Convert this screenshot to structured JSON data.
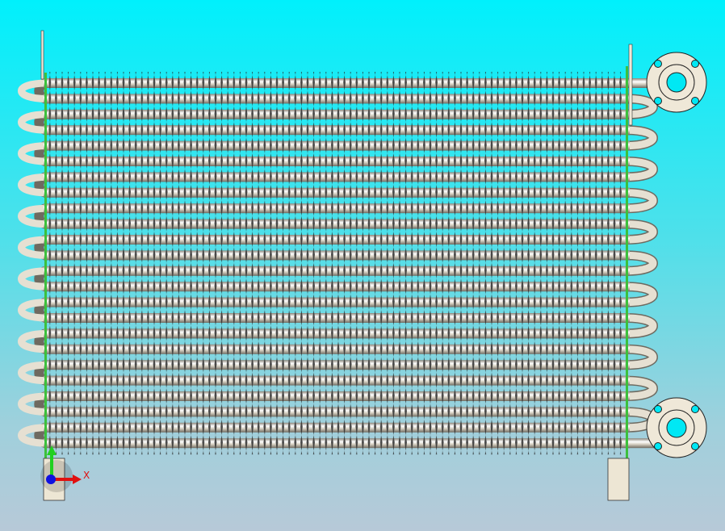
{
  "viewport": {
    "background_top": "#00f0fc",
    "background_bottom": "#b7c9d8",
    "model": {
      "tube_rows": 24,
      "tube_color": "#d8d2c4",
      "fin_color": "#2a2a2a",
      "tube_sheet_color": "#3cc03c",
      "flange_color": "#efe8d8",
      "flange_bolt_holes": 4
    },
    "triad": {
      "x_label": "X",
      "x_color": "#e01010",
      "y_color": "#20d020",
      "z_color": "#1010e0"
    }
  }
}
